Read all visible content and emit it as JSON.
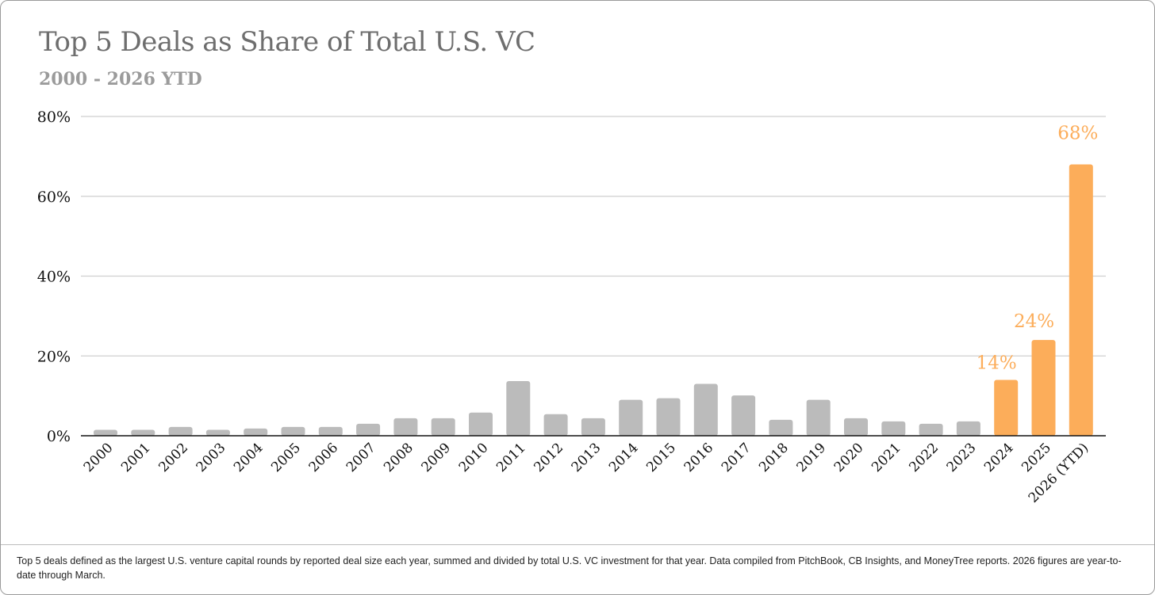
{
  "header": {
    "title": "Top 5 Deals as Share of Total U.S. VC",
    "subtitle": "2000 - 2026 YTD"
  },
  "footnote": "Top 5 deals defined as the largest U.S. venture capital rounds by reported deal size each year, summed and divided by total U.S. VC investment for that year. Data compiled from PitchBook, CB Insights, and MoneyTree reports. 2026 figures are year-to-date through March.",
  "colors": {
    "base_bar": "#bbbbbb",
    "highlight_bar": "#fcad5a",
    "gridline": "#cfcfcf",
    "axis": "#111111"
  },
  "chart_data": {
    "type": "bar",
    "title": "Top 5 Deals as Share of Total U.S. VC",
    "subtitle": "2000 - 2026 YTD",
    "xlabel": "",
    "ylabel": "",
    "ylim": [
      0,
      80
    ],
    "yticks": [
      0,
      20,
      40,
      60,
      80
    ],
    "ytick_labels": [
      "0%",
      "20%",
      "40%",
      "60%",
      "80%"
    ],
    "grid": true,
    "categories": [
      "2000",
      "2001",
      "2002",
      "2003",
      "2004",
      "2005",
      "2006",
      "2007",
      "2008",
      "2009",
      "2010",
      "2011",
      "2012",
      "2013",
      "2014",
      "2015",
      "2016",
      "2017",
      "2018",
      "2019",
      "2020",
      "2021",
      "2022",
      "2023",
      "2024",
      "2025",
      "2026 (YTD)"
    ],
    "values": [
      1.5,
      1.5,
      2.2,
      1.5,
      1.8,
      2.2,
      2.2,
      3,
      4.4,
      4.4,
      5.8,
      13.7,
      5.4,
      4.4,
      9,
      9.4,
      13,
      10.1,
      4,
      9,
      4.4,
      3.6,
      3,
      3.6,
      14,
      24,
      68
    ],
    "highlighted": [
      false,
      false,
      false,
      false,
      false,
      false,
      false,
      false,
      false,
      false,
      false,
      false,
      false,
      false,
      false,
      false,
      false,
      false,
      false,
      false,
      false,
      false,
      false,
      false,
      true,
      true,
      true
    ],
    "data_labels": [
      {
        "category": "2024",
        "text": "14%"
      },
      {
        "category": "2025",
        "text": "24%"
      },
      {
        "category": "2026 (YTD)",
        "text": "68%"
      }
    ]
  }
}
